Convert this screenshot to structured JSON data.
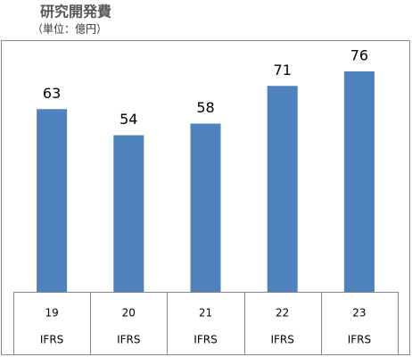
{
  "chart_data": {
    "type": "bar",
    "title": "研究開発費",
    "subtitle": "（単位：億円）",
    "categories": [
      "19",
      "20",
      "21",
      "22",
      "23"
    ],
    "subcategories": [
      "IFRS",
      "IFRS",
      "IFRS",
      "IFRS",
      "IFRS"
    ],
    "values": [
      63,
      54,
      58,
      71,
      76
    ],
    "color": "#4f81bd"
  }
}
